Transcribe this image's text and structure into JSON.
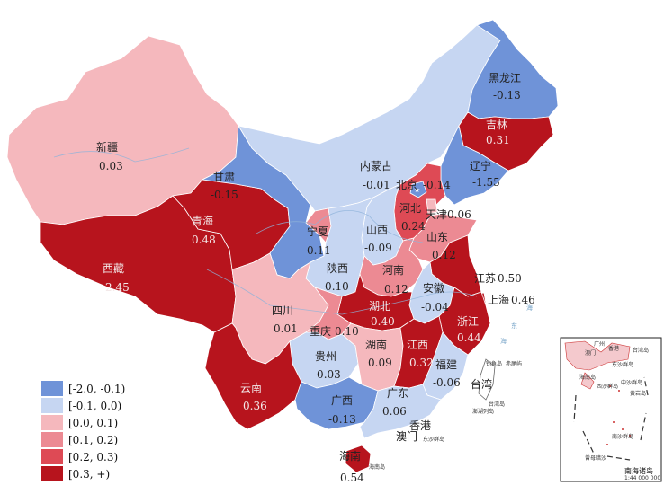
{
  "colors": {
    "c_neg2": "#6f93d8",
    "c_neg1": "#c6d6f2",
    "c_0": "#f5b8bd",
    "c_01": "#ec8a93",
    "c_02": "#de4a55",
    "c_03": "#b7141d"
  },
  "legend": [
    {
      "label": "[-2.0, -0.1)",
      "color_key": "c_neg2"
    },
    {
      "label": "[-0.1, 0.0)",
      "color_key": "c_neg1"
    },
    {
      "label": "[0.0, 0.1)",
      "color_key": "c_0"
    },
    {
      "label": "[0.1, 0.2)",
      "color_key": "c_01"
    },
    {
      "label": "[0.2, 0.3)",
      "color_key": "c_02"
    },
    {
      "label": "[0.3, +)",
      "color_key": "c_03"
    }
  ],
  "provinces": {
    "heilongjiang": {
      "name": "黑龙江",
      "value": "-0.13"
    },
    "jilin": {
      "name": "吉林",
      "value": "0.31"
    },
    "liaoning": {
      "name": "辽宁",
      "value": "-1.55"
    },
    "neimenggu": {
      "name": "内蒙古",
      "value": "-0.01"
    },
    "beijing": {
      "name": "北京",
      "value": "-0.14"
    },
    "tianjin": {
      "name": "天津",
      "value": "0.06"
    },
    "hebei": {
      "name": "河北",
      "value": "0.24"
    },
    "shanxi": {
      "name": "山西",
      "value": "-0.09"
    },
    "shandong": {
      "name": "山东",
      "value": "0.12"
    },
    "xinjiang": {
      "name": "新疆",
      "value": "0.03"
    },
    "gansu": {
      "name": "甘肃",
      "value": "-0.15"
    },
    "qinghai": {
      "name": "青海",
      "value": "0.48"
    },
    "ningxia": {
      "name": "宁夏",
      "value": "0.11"
    },
    "shaanxi": {
      "name": "陕西",
      "value": "-0.10"
    },
    "henan": {
      "name": "河南",
      "value": "0.12"
    },
    "jiangsu": {
      "name": "江苏",
      "value": "0.50"
    },
    "anhui": {
      "name": "安徽",
      "value": "-0.04"
    },
    "shanghai": {
      "name": "上海",
      "value": "0.46"
    },
    "xizang": {
      "name": "西藏",
      "value": "2.45"
    },
    "sichuan": {
      "name": "四川",
      "value": "0.01"
    },
    "chongqing": {
      "name": "重庆",
      "value": "0.10"
    },
    "hubei": {
      "name": "湖北",
      "value": "0.40"
    },
    "zhejiang": {
      "name": "浙江",
      "value": "0.44"
    },
    "hunan": {
      "name": "湖南",
      "value": "0.09"
    },
    "jiangxi": {
      "name": "江西",
      "value": "0.32"
    },
    "guizhou": {
      "name": "贵州",
      "value": "-0.03"
    },
    "fujian": {
      "name": "福建",
      "value": "-0.06"
    },
    "yunnan": {
      "name": "云南",
      "value": "0.36"
    },
    "guangxi": {
      "name": "广西",
      "value": "-0.13"
    },
    "guangdong": {
      "name": "广东",
      "value": "0.06"
    },
    "hainan": {
      "name": "海南",
      "value": "0.54"
    }
  },
  "places": {
    "taiwan": "台湾",
    "hongkong": "香港",
    "macau": "澳门",
    "taiwan_island": "台湾岛",
    "diaoyu": "钓鱼岛",
    "chiwei": "赤尾屿",
    "dongsha": "东沙群岛",
    "hainan_island": "海南岛",
    "penghu": "澎湖列岛"
  },
  "sea_labels": {
    "sea1": "海",
    "sea2": "东",
    "sea3": "海"
  },
  "inset": {
    "title": "南海诸岛",
    "scale": "1:44 000 000",
    "labels": [
      "广州",
      "香港",
      "澳门",
      "台湾岛",
      "海南岛",
      "东沙群岛",
      "西沙群岛",
      "中沙群岛",
      "南沙群岛",
      "黄岩岛",
      "曾母暗沙"
    ]
  }
}
